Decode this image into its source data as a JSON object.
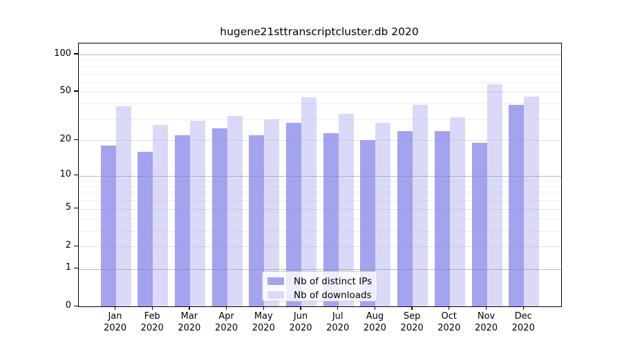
{
  "title": "hugene21sttranscriptcluster.db 2020",
  "chart_data": {
    "type": "bar",
    "title": "hugene21sttranscriptcluster.db 2020",
    "categories": [
      "Jan",
      "Feb",
      "Mar",
      "Apr",
      "May",
      "Jun",
      "Jul",
      "Aug",
      "Sep",
      "Oct",
      "Nov",
      "Dec"
    ],
    "year_label": "2020",
    "series": [
      {
        "name": "Nb of distinct IPs",
        "color": "#a3a3f0",
        "values": [
          18,
          16,
          22,
          25,
          22,
          28,
          23,
          20,
          24,
          24,
          19,
          39
        ]
      },
      {
        "name": "Nb of downloads",
        "color": "#dadaf8",
        "values": [
          38,
          27,
          29,
          32,
          30,
          45,
          33,
          28,
          39,
          31,
          58,
          46
        ]
      }
    ],
    "yscale": "log10(value+1)",
    "ylim": [
      0,
      122
    ],
    "y_ticks": [
      0,
      1,
      2,
      5,
      10,
      20,
      50,
      100
    ],
    "grid_major_decades": [
      1,
      10,
      100
    ],
    "grid_labeled_mids": [
      2,
      5,
      20,
      50
    ],
    "grid_minors": [
      3,
      4,
      6,
      7,
      8,
      9,
      30,
      40,
      60,
      70,
      80,
      90
    ],
    "grid": "on",
    "legend_position": "bottom-center-inside",
    "xlabel": "",
    "ylabel": ""
  },
  "legend": {
    "items": [
      {
        "label": "Nb of distinct IPs"
      },
      {
        "label": "Nb of downloads"
      }
    ]
  },
  "colors": {
    "background": "#ffffff",
    "bar_distinct_ips": "#a3a3f0",
    "bar_downloads": "#dadaf8",
    "axis": "#000000",
    "grid_decade": "#c4c4c4",
    "grid_mid": "#e4e4e4",
    "grid_minor": "#efefef"
  }
}
